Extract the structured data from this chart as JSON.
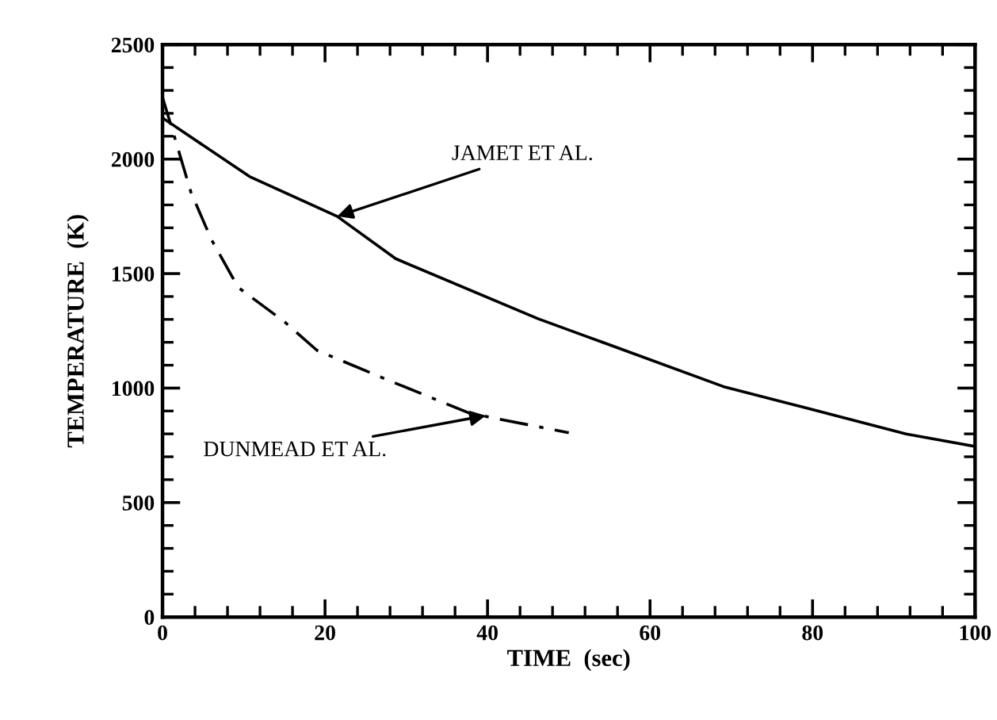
{
  "chart_data": {
    "type": "line",
    "xlabel": "TIME  (sec)",
    "ylabel": "TEMPERATURE  (K)",
    "xlim": [
      0,
      100
    ],
    "ylim": [
      0,
      2500
    ],
    "xticks": [
      0,
      20,
      40,
      60,
      80,
      100
    ],
    "yticks": [
      0,
      500,
      1000,
      1500,
      2000,
      2500
    ],
    "grid": false,
    "legend": false,
    "marker": "none",
    "series": [
      {
        "color": "#000000",
        "line_style": "solid",
        "x": [
          0,
          10.7,
          21.5,
          28.7,
          46.2,
          52,
          69,
          91.5,
          100
        ],
        "values": [
          2180,
          1924,
          1750,
          1565,
          1303,
          1228,
          1007,
          800,
          745
        ]
      },
      {
        "color": "#000000",
        "line_style": "dashdot",
        "x": [
          0,
          1.2,
          3.5,
          6,
          9.3,
          15,
          19,
          27.4,
          37.8,
          50
        ],
        "values": [
          2270,
          2130,
          1855,
          1650,
          1440,
          1290,
          1165,
          1040,
          890,
          805
        ]
      }
    ],
    "annotations": [
      {
        "text": "JAMET ET AL.",
        "x": 21.5,
        "y": 1750
      },
      {
        "text": "DUNMEAD ET AL.",
        "x": 39.8,
        "y": 880
      }
    ]
  }
}
